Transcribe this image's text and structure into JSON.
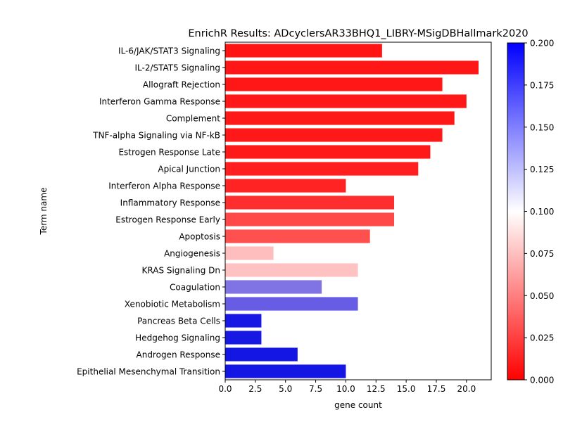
{
  "chart_data": {
    "type": "bar",
    "orientation": "horizontal",
    "title": "EnrichR Results: ADcyclersAR33BHQ1_LIBRY-MSigDBHallmark2020",
    "xlabel": "gene count",
    "ylabel": "Term name",
    "xlim": [
      0,
      22.05
    ],
    "xticks": [
      "0.0",
      "2.5",
      "5.0",
      "7.5",
      "10.0",
      "12.5",
      "15.0",
      "17.5",
      "20.0"
    ],
    "categories": [
      "IL-6/JAK/STAT3 Signaling",
      "IL-2/STAT5 Signaling",
      "Allograft Rejection",
      "Interferon Gamma Response",
      "Complement",
      "TNF-alpha Signaling via NF-kB",
      "Estrogen Response Late",
      "Apical Junction",
      "Interferon Alpha Response",
      "Inflammatory Response",
      "Estrogen Response Early",
      "Apoptosis",
      "Angiogenesis",
      "KRAS Signaling Dn",
      "Coagulation",
      "Xenobiotic Metabolism",
      "Pancreas Beta Cells",
      "Hedgehog Signaling",
      "Androgen Response",
      "Epithelial Mesenchymal Transition"
    ],
    "values": [
      13,
      21,
      18,
      20,
      19,
      18,
      17,
      16,
      10,
      14,
      14,
      12,
      4,
      11,
      8,
      11,
      3,
      3,
      6,
      10
    ],
    "color_values": [
      0.007,
      0.008,
      0.008,
      0.009,
      0.009,
      0.009,
      0.01,
      0.012,
      0.014,
      0.019,
      0.031,
      0.034,
      0.083,
      0.085,
      0.15,
      0.16,
      0.191,
      0.191,
      0.192,
      0.192
    ],
    "colorbar": {
      "range": [
        0.0,
        0.2
      ],
      "ticks": [
        "0.000",
        "0.025",
        "0.050",
        "0.075",
        "0.100",
        "0.125",
        "0.150",
        "0.175",
        "0.200"
      ],
      "colormap": "bwr_r",
      "low_color": "#ff0000",
      "mid_color": "#ffffff",
      "high_color": "#0000ff"
    },
    "grid": false,
    "legend": "colorbar-right"
  }
}
